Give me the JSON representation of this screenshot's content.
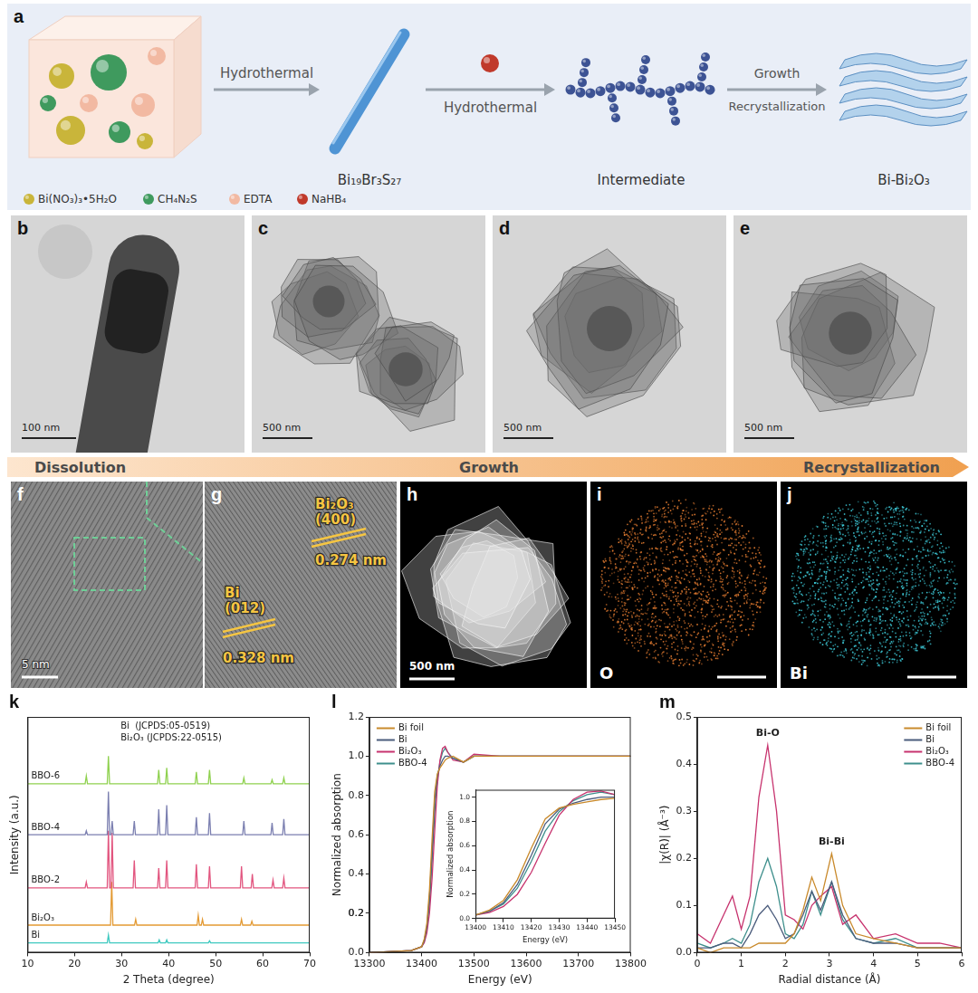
{
  "figure": {
    "a": {
      "letter": "a",
      "arrows": [
        [
          "Hydrothermal"
        ],
        [
          "Hydrothermal"
        ],
        [
          "Growth",
          "Recrystallization"
        ]
      ],
      "stages": [
        "Bi₁₉Br₃S₂₇",
        "Intermediate",
        "Bi-Bi₂O₃"
      ],
      "reagents": [
        "Bi(NO₃)₃•5H₂O",
        "CH₄N₂S",
        "EDTA",
        "NaHB₄"
      ]
    },
    "tem": [
      {
        "letter": "b",
        "scale_bar": "100 nm"
      },
      {
        "letter": "c",
        "scale_bar": "500 nm"
      },
      {
        "letter": "d",
        "scale_bar": "500 nm"
      },
      {
        "letter": "e",
        "scale_bar": "500 nm"
      }
    ],
    "process": [
      "Dissolution",
      "Growth",
      "Recrystallization"
    ],
    "f": {
      "letter": "f",
      "scale_bar": "5 nm"
    },
    "g": {
      "letter": "g",
      "fringes": [
        {
          "phase": "Bi₂O₃",
          "plane": "(400)",
          "spacing": "0.274 nm"
        },
        {
          "phase": "Bi",
          "plane": "(012)",
          "spacing": "0.328 nm"
        }
      ]
    },
    "h": {
      "letter": "h",
      "scale_bar": "500 nm"
    },
    "maps": [
      {
        "letter": "i",
        "element": "O",
        "color": "#e07a30"
      },
      {
        "letter": "j",
        "element": "Bi",
        "color": "#3cc6d4"
      }
    ]
  },
  "chart_data": [
    {
      "panel": "k",
      "type": "line",
      "x_label": "2 Theta (degree)",
      "y_label": "Intensity (a.u.)",
      "xlim": [
        10,
        70
      ],
      "xticks": [
        10,
        20,
        30,
        40,
        50,
        60,
        70
      ],
      "ylim": [
        0,
        120
      ],
      "tick_labels": "x",
      "grid": false,
      "legend": "inline",
      "annotations": [
        "Bi  (JCPDS:05-0519)",
        "Bi₂O₃ (JCPDS:22-0515)"
      ],
      "series": [
        {
          "name": "BBO-6",
          "color": "#8fd14f",
          "x": [
            10,
            22.25,
            22.5,
            22.75,
            26.95,
            27.2,
            27.45,
            37.65,
            37.9,
            38.15,
            39.35,
            39.6,
            39.85,
            45.65,
            45.9,
            46.15,
            48.45,
            48.7,
            48.95,
            55.75,
            56,
            56.25,
            61.75,
            62,
            62.25,
            64.25,
            64.5,
            64.75,
            70
          ],
          "values": [
            86,
            86,
            90,
            86,
            86,
            100,
            86,
            86,
            93,
            86,
            86,
            94,
            86,
            86,
            92,
            86,
            86,
            93,
            86,
            86,
            89,
            86,
            86,
            88,
            86,
            86,
            89,
            86,
            86
          ]
        },
        {
          "name": "BBO-4",
          "color": "#7b7fb0",
          "x": [
            10,
            22.25,
            22.5,
            22.75,
            26.95,
            27.2,
            27.45,
            27.75,
            28,
            28.25,
            32.45,
            32.7,
            32.95,
            37.65,
            37.9,
            38.15,
            39.35,
            39.6,
            39.85,
            45.65,
            45.9,
            46.15,
            48.45,
            48.7,
            48.95,
            55.75,
            56,
            56.25,
            61.75,
            62,
            62.25,
            64.25,
            64.5,
            64.75,
            70
          ],
          "values": [
            60,
            60,
            62,
            60,
            60,
            82,
            60,
            60,
            67,
            60,
            60,
            67,
            60,
            60,
            73,
            60,
            60,
            75,
            60,
            60,
            69,
            60,
            60,
            71,
            60,
            60,
            67,
            60,
            60,
            66,
            60,
            60,
            68,
            60,
            60
          ]
        },
        {
          "name": "BBO-2",
          "color": "#e2557f",
          "x": [
            10,
            22.25,
            22.5,
            22.75,
            26.95,
            27.2,
            27.45,
            27.75,
            28,
            28.25,
            32.45,
            32.7,
            32.95,
            37.65,
            37.9,
            38.15,
            39.35,
            39.6,
            39.85,
            45.65,
            45.9,
            46.15,
            48.45,
            48.7,
            48.95,
            55.25,
            55.5,
            55.75,
            57.55,
            57.8,
            58.05,
            61.95,
            62.2,
            62.45,
            64.25,
            64.5,
            64.75,
            70
          ],
          "values": [
            33,
            33,
            36,
            33,
            33,
            62,
            33,
            33,
            61,
            33,
            33,
            47,
            33,
            33,
            43,
            33,
            33,
            47,
            33,
            33,
            45,
            33,
            33,
            44,
            33,
            33,
            44,
            33,
            33,
            40,
            33,
            33,
            37,
            33,
            33,
            38,
            33,
            33
          ]
        },
        {
          "name": "Bi₂O₃",
          "color": "#e39a33",
          "x": [
            10,
            27.65,
            27.9,
            28.15,
            32.75,
            33,
            33.25,
            46.05,
            46.3,
            46.55,
            46.95,
            47.2,
            47.45,
            55.25,
            55.5,
            55.75,
            57.45,
            57.7,
            57.95,
            70
          ],
          "values": [
            14,
            14,
            36,
            14,
            14,
            17,
            14,
            14,
            19,
            14,
            14,
            17,
            14,
            14,
            17,
            14,
            14,
            16,
            14,
            14
          ]
        },
        {
          "name": "Bi",
          "color": "#3fc9c0",
          "x": [
            10,
            26.95,
            27.2,
            27.45,
            37.75,
            38,
            38.25,
            39.35,
            39.6,
            39.85,
            48.45,
            48.7,
            48.95,
            70
          ],
          "values": [
            5,
            5,
            9,
            5,
            5,
            6.5,
            5,
            5,
            6.5,
            5,
            5,
            6,
            5,
            5
          ]
        }
      ]
    },
    {
      "panel": "l",
      "type": "line",
      "x_label": "Energy (eV)",
      "y_label": "Normalized absorption",
      "xlim": [
        13300,
        13800
      ],
      "xticks": [
        13300,
        13400,
        13500,
        13600,
        13700,
        13800
      ],
      "ylim": [
        0,
        1.2
      ],
      "yticks": [
        {
          "value": 0,
          "label": "0.0"
        },
        0.2,
        0.4,
        0.6,
        0.8,
        {
          "value": 1,
          "label": "1.0"
        },
        0.2,
        1.2
      ],
      "grid": false,
      "legend": "upper left",
      "x": [
        13300,
        13380,
        13400,
        13405,
        13410,
        13415,
        13420,
        13425,
        13430,
        13435,
        13440,
        13445,
        13450,
        13460,
        13480,
        13500,
        13550,
        13600,
        13700,
        13800
      ],
      "series": [
        {
          "name": "Bi foil",
          "color": "#c98a2c",
          "values": [
            0,
            0.01,
            0.03,
            0.07,
            0.15,
            0.32,
            0.58,
            0.82,
            0.91,
            0.94,
            0.96,
            0.98,
            0.99,
            1.0,
            0.97,
            1.0,
            1.0,
            1.0,
            1.0,
            1.0
          ]
        },
        {
          "name": "Bi",
          "color": "#4b5c7c",
          "values": [
            0,
            0.01,
            0.03,
            0.06,
            0.13,
            0.28,
            0.52,
            0.78,
            0.9,
            0.95,
            0.98,
            1.0,
            1.0,
            0.99,
            0.97,
            1.0,
            1.0,
            1.0,
            1.0,
            1.0
          ]
        },
        {
          "name": "Bi₂O₃",
          "color": "#c7336e",
          "values": [
            0,
            0.01,
            0.03,
            0.05,
            0.1,
            0.2,
            0.38,
            0.62,
            0.85,
            0.98,
            1.04,
            1.05,
            1.02,
            0.98,
            0.97,
            1.01,
            1.0,
            1.0,
            1.0,
            1.0
          ]
        },
        {
          "name": "BBO-4",
          "color": "#3e8f8c",
          "values": [
            0,
            0.01,
            0.03,
            0.06,
            0.12,
            0.25,
            0.47,
            0.72,
            0.88,
            0.97,
            1.02,
            1.04,
            1.02,
            0.99,
            0.97,
            1.0,
            1.0,
            1.0,
            1.0,
            1.0
          ]
        }
      ],
      "inset": {
        "x_label": "Energy (eV)",
        "y_label": "Normalized absorption",
        "xlim": [
          13400,
          13450
        ],
        "xticks": [
          13400,
          13410,
          13420,
          13430,
          13440,
          13450
        ],
        "ylim": [
          0,
          1.06
        ],
        "yticks": [
          {
            "value": 0,
            "label": "0.0"
          },
          0.2,
          0.4,
          0.6,
          0.8,
          {
            "value": 1,
            "label": "1.0"
          }
        ]
      }
    },
    {
      "panel": "m",
      "type": "line",
      "x_label": "Radial distance (Å)",
      "y_label": "|χ(R)| (Å⁻³)",
      "xlim": [
        0,
        6
      ],
      "xticks": [
        0,
        1,
        2,
        3,
        4,
        5,
        6
      ],
      "ylim": [
        0,
        0.5
      ],
      "yticks": [
        {
          "value": 0,
          "label": "0.0"
        },
        0.1,
        0.2,
        0.3,
        0.4,
        0.5
      ],
      "grid": false,
      "legend": "upper right",
      "annotations": [
        {
          "text": "Bi-O",
          "x": 1.6,
          "y": 0.45
        },
        {
          "text": "Bi-Bi",
          "x": 3.05,
          "y": 0.22
        }
      ],
      "x": [
        0,
        0.3,
        0.6,
        0.8,
        1.0,
        1.2,
        1.4,
        1.6,
        1.8,
        2.0,
        2.2,
        2.4,
        2.6,
        2.8,
        3.05,
        3.3,
        3.6,
        4.0,
        4.5,
        5.0,
        5.5,
        6.0
      ],
      "series": [
        {
          "name": "Bi foil",
          "color": "#c98a2c",
          "values": [
            0.01,
            0,
            0.01,
            0.01,
            0.01,
            0.01,
            0.02,
            0.02,
            0.02,
            0.02,
            0.04,
            0.09,
            0.16,
            0.11,
            0.21,
            0.1,
            0.04,
            0.03,
            0.02,
            0.01,
            0.01,
            0.01
          ]
        },
        {
          "name": "Bi",
          "color": "#4b5c7c",
          "values": [
            0.01,
            0.01,
            0.02,
            0.02,
            0.01,
            0.04,
            0.08,
            0.1,
            0.07,
            0.03,
            0.04,
            0.08,
            0.13,
            0.09,
            0.15,
            0.08,
            0.03,
            0.02,
            0.02,
            0.01,
            0.01,
            0.01
          ]
        },
        {
          "name": "Bi₂O₃",
          "color": "#c7336e",
          "values": [
            0.04,
            0.02,
            0.08,
            0.12,
            0.05,
            0.12,
            0.33,
            0.44,
            0.3,
            0.08,
            0.07,
            0.05,
            0.1,
            0.12,
            0.14,
            0.06,
            0.08,
            0.03,
            0.04,
            0.02,
            0.02,
            0.01
          ]
        },
        {
          "name": "BBO-4",
          "color": "#3e8f8c",
          "values": [
            0.02,
            0.01,
            0.02,
            0.03,
            0.02,
            0.06,
            0.15,
            0.2,
            0.14,
            0.04,
            0.03,
            0.06,
            0.13,
            0.08,
            0.15,
            0.07,
            0.03,
            0.02,
            0.03,
            0.01,
            0.01,
            0.01
          ]
        }
      ]
    }
  ]
}
